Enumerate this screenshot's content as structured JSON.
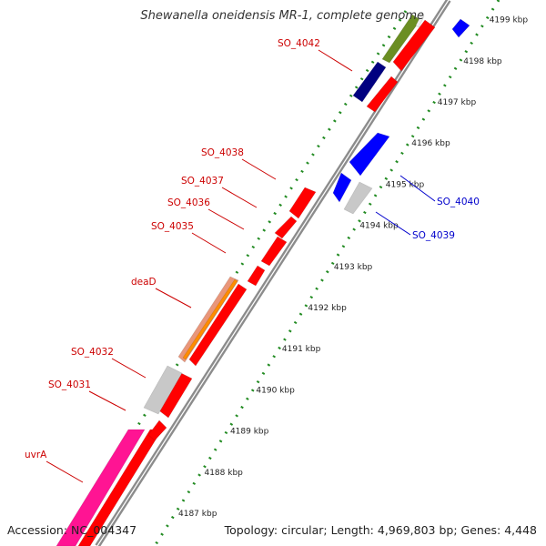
{
  "title": "Shewanella oneidensis MR-1, complete genome",
  "footer": {
    "accession": "Accession: NC_004347",
    "topology": "Topology: circular; Length: 4,969,803 bp; Genes: 4,448"
  },
  "colors": {
    "backbone": "#8c8c8c",
    "tick": "#228b22",
    "forward_gene": "#ff0000",
    "reverse_gene": "#0000ff",
    "label_forward": "#cc0000",
    "label_reverse": "#0000cc"
  },
  "ticks": [
    {
      "label": "4187 kbp",
      "kbp": 4187
    },
    {
      "label": "4188 kbp",
      "kbp": 4188
    },
    {
      "label": "4189 kbp",
      "kbp": 4189
    },
    {
      "label": "4190 kbp",
      "kbp": 4190
    },
    {
      "label": "4191 kbp",
      "kbp": 4191
    },
    {
      "label": "4192 kbp",
      "kbp": 4192
    },
    {
      "label": "4193 kbp",
      "kbp": 4193
    },
    {
      "label": "4194 kbp",
      "kbp": 4194
    },
    {
      "label": "4195 kbp",
      "kbp": 4195
    },
    {
      "label": "4196 kbp",
      "kbp": 4196
    },
    {
      "label": "4197 kbp",
      "kbp": 4197
    },
    {
      "label": "4198 kbp",
      "kbp": 4198
    },
    {
      "label": "4199 kbp",
      "kbp": 4199
    }
  ],
  "labels": [
    {
      "text": "SO_4042",
      "strand": "forward"
    },
    {
      "text": "SO_4038",
      "strand": "forward"
    },
    {
      "text": "SO_4037",
      "strand": "forward"
    },
    {
      "text": "SO_4036",
      "strand": "forward"
    },
    {
      "text": "SO_4035",
      "strand": "forward"
    },
    {
      "text": "deaD",
      "strand": "forward"
    },
    {
      "text": "SO_4032",
      "strand": "forward"
    },
    {
      "text": "SO_4031",
      "strand": "forward"
    },
    {
      "text": "uvrA",
      "strand": "forward"
    },
    {
      "text": "SO_4040",
      "strand": "reverse"
    },
    {
      "text": "SO_4039",
      "strand": "reverse"
    }
  ],
  "features": [
    {
      "name": "feature-uvrA-pink",
      "color": "#ff1493"
    },
    {
      "name": "feature-uvrA-red",
      "color": "#ff0000"
    },
    {
      "name": "feature-small-red-1",
      "color": "#ff0000"
    },
    {
      "name": "feature-SO_4031-red",
      "color": "#ff0000"
    },
    {
      "name": "feature-SO_4032-gray",
      "color": "#c8c8c8"
    },
    {
      "name": "feature-deaD-red",
      "color": "#ff0000"
    },
    {
      "name": "feature-deaD-salmon",
      "color": "#e9967a"
    },
    {
      "name": "feature-deaD-orange",
      "color": "#ff8c00"
    },
    {
      "name": "feature-SO_4035-red",
      "color": "#ff0000"
    },
    {
      "name": "feature-SO_4036-red",
      "color": "#ff0000"
    },
    {
      "name": "feature-SO_4037-red",
      "color": "#ff0000"
    },
    {
      "name": "feature-SO_4038-red",
      "color": "#ff0000"
    },
    {
      "name": "feature-SO_4039-gray",
      "color": "#c8c8c8"
    },
    {
      "name": "feature-SO_4040-blue-1",
      "color": "#0000ff"
    },
    {
      "name": "feature-SO_4040-blue-2",
      "color": "#0000ff"
    },
    {
      "name": "feature-navy",
      "color": "#000080"
    },
    {
      "name": "feature-red-4041",
      "color": "#ff0000"
    },
    {
      "name": "feature-red-4042",
      "color": "#ff0000"
    },
    {
      "name": "feature-olive",
      "color": "#6b8e23"
    },
    {
      "name": "feature-white",
      "color": "#f0f0f0"
    },
    {
      "name": "feature-blue-top",
      "color": "#0000ff"
    }
  ]
}
